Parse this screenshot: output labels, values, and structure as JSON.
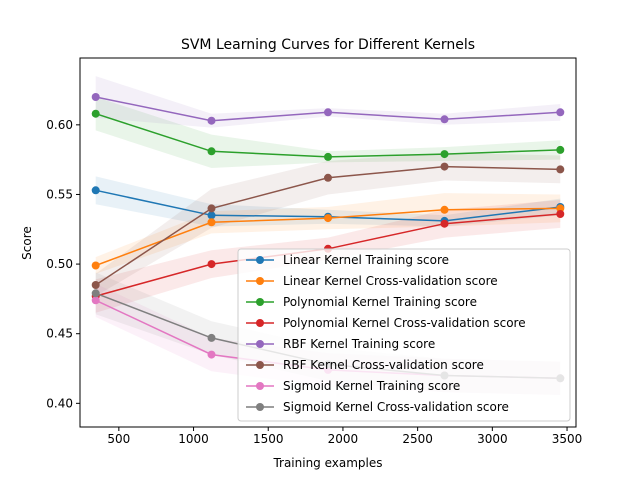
{
  "chart_data": {
    "type": "line",
    "title": "SVM Learning Curves for Different Kernels",
    "xlabel": "Training examples",
    "ylabel": "Score",
    "xlim": [
      240,
      3560
    ],
    "ylim": [
      0.383,
      0.648
    ],
    "xticks": [
      500,
      1000,
      1500,
      2000,
      2500,
      3000,
      3500
    ],
    "xtick_labels": [
      "500",
      "1000",
      "1500",
      "2000",
      "2500",
      "3000",
      "3500"
    ],
    "yticks": [
      0.4,
      0.45,
      0.5,
      0.55,
      0.6
    ],
    "ytick_labels": [
      "0.40",
      "0.45",
      "0.50",
      "0.55",
      "0.60"
    ],
    "grid": false,
    "legend_position": "lower right",
    "x": [
      345,
      1120,
      1900,
      2680,
      3455
    ],
    "series": [
      {
        "name": "Linear Kernel Training score",
        "color": "#1f77b4",
        "values": [
          0.553,
          0.535,
          0.534,
          0.531,
          0.541
        ],
        "band": [
          0.01,
          0.008,
          0.005,
          0.004,
          0.006
        ]
      },
      {
        "name": "Linear Kernel Cross-validation score",
        "color": "#ff7f0e",
        "values": [
          0.499,
          0.53,
          0.533,
          0.539,
          0.54
        ],
        "band": [
          0.006,
          0.008,
          0.008,
          0.012,
          0.01
        ]
      },
      {
        "name": "Polynomial Kernel Training score",
        "color": "#2ca02c",
        "values": [
          0.608,
          0.581,
          0.577,
          0.579,
          0.582
        ],
        "band": [
          0.012,
          0.012,
          0.004,
          0.005,
          0.007
        ]
      },
      {
        "name": "Polynomial Kernel Cross-validation score",
        "color": "#d62728",
        "values": [
          0.477,
          0.5,
          0.511,
          0.529,
          0.536
        ],
        "band": [
          0.012,
          0.01,
          0.008,
          0.01,
          0.01
        ]
      },
      {
        "name": "RBF Kernel Training score",
        "color": "#9467bd",
        "values": [
          0.62,
          0.603,
          0.609,
          0.604,
          0.609
        ],
        "band": [
          0.015,
          0.005,
          0.003,
          0.004,
          0.006
        ]
      },
      {
        "name": "RBF Kernel Cross-validation score",
        "color": "#8c564b",
        "values": [
          0.485,
          0.54,
          0.562,
          0.57,
          0.568
        ],
        "band": [
          0.008,
          0.014,
          0.012,
          0.01,
          0.01
        ]
      },
      {
        "name": "Sigmoid Kernel Training score",
        "color": "#e377c2",
        "values": [
          0.474,
          0.435,
          0.424,
          0.42,
          0.418
        ],
        "band": [
          0.012,
          0.012,
          0.012,
          0.012,
          0.012
        ]
      },
      {
        "name": "Sigmoid Kernel Cross-validation score",
        "color": "#7f7f7f",
        "values": [
          0.479,
          0.447,
          0.428,
          0.42,
          0.418
        ],
        "band": [
          0.015,
          0.012,
          0.012,
          0.012,
          0.012
        ]
      }
    ]
  }
}
